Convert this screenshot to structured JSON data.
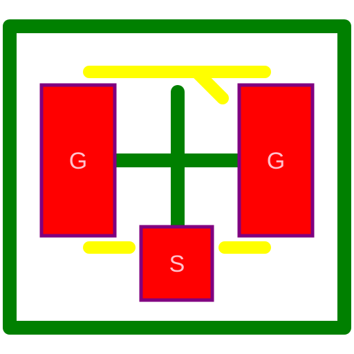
{
  "colors": {
    "board_outline": "#008000",
    "trace": "#008000",
    "silkscreen": "#ffff00",
    "pad_fill": "#ff0000",
    "pad_stroke": "#800080",
    "pad_label": "#ffc0cb",
    "background": "#ffffff"
  },
  "pads": {
    "left": {
      "label": "G"
    },
    "right": {
      "label": "G"
    },
    "bottom": {
      "label": "S"
    }
  }
}
